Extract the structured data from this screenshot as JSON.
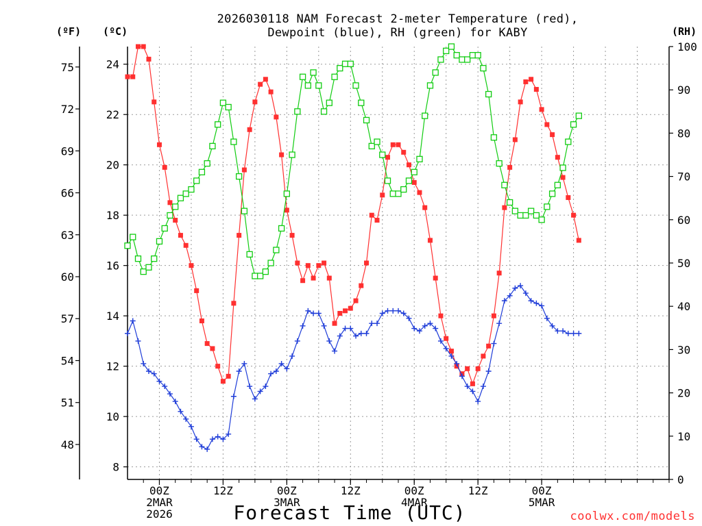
{
  "chart_data": {
    "type": "line",
    "title_line1": "2026030118 NAM Forecast 2-meter Temperature (red),",
    "title_line2": "Dewpoint (blue), RH (green) for KABY",
    "ylabel_f": "(ºF)",
    "ylabel_c": "(ºC)",
    "ylabel_rh": "(RH)",
    "xlabel": "Forecast Time (UTC)",
    "credit": "coolwx.com/models",
    "x_start_hour": 18,
    "x_end_hour": 120,
    "x_step_hours": 1,
    "ylim_c": [
      7.5,
      24.7
    ],
    "ylim_rh": [
      0,
      100
    ],
    "yticks_c": [
      8,
      10,
      12,
      14,
      16,
      18,
      20,
      22,
      24
    ],
    "yticks_f": [
      48,
      51,
      54,
      57,
      60,
      63,
      66,
      69,
      72,
      75
    ],
    "yticks_rh": [
      0,
      10,
      20,
      30,
      40,
      50,
      60,
      70,
      80,
      90,
      100
    ],
    "x_ticks": [
      {
        "hour": 24,
        "lines": [
          "00Z",
          "2MAR",
          "2026"
        ]
      },
      {
        "hour": 36,
        "lines": [
          "12Z"
        ]
      },
      {
        "hour": 48,
        "lines": [
          "00Z",
          "3MAR"
        ]
      },
      {
        "hour": 60,
        "lines": [
          "12Z"
        ]
      },
      {
        "hour": 72,
        "lines": [
          "00Z",
          "4MAR"
        ]
      },
      {
        "hour": 84,
        "lines": [
          "12Z"
        ]
      },
      {
        "hour": 96,
        "lines": [
          "00Z",
          "5MAR"
        ]
      }
    ],
    "series": [
      {
        "name": "2-meter Temperature",
        "unit": "C",
        "color": "#ff3030",
        "marker": "filled-square",
        "values": [
          23.5,
          23.5,
          24.7,
          24.7,
          24.2,
          22.5,
          20.8,
          19.9,
          18.5,
          17.8,
          17.2,
          16.8,
          16.0,
          15.0,
          13.8,
          12.9,
          12.7,
          12.0,
          11.4,
          11.6,
          14.5,
          17.2,
          19.8,
          21.4,
          22.5,
          23.2,
          23.4,
          22.9,
          21.9,
          20.4,
          18.2,
          17.2,
          16.1,
          15.4,
          16.0,
          15.5,
          16.0,
          16.1,
          15.5,
          13.7,
          14.1,
          14.2,
          14.3,
          14.6,
          15.2,
          16.1,
          18.0,
          17.8,
          18.8,
          20.3,
          20.8,
          20.8,
          20.5,
          20.0,
          19.3,
          18.9,
          18.3,
          17.0,
          15.5,
          14.0,
          13.1,
          12.6,
          12.0,
          11.7,
          11.9,
          11.3,
          11.9,
          12.4,
          12.8,
          14.0,
          15.7,
          18.3,
          19.9,
          21.0,
          22.5,
          23.3,
          23.4,
          23.0,
          22.2,
          21.6,
          21.2,
          20.3,
          19.5,
          18.7,
          18.0,
          17.0
        ]
      },
      {
        "name": "Dewpoint",
        "unit": "C",
        "color": "#1e3cd8",
        "marker": "plus",
        "values": [
          13.3,
          13.8,
          13.0,
          12.1,
          11.8,
          11.7,
          11.4,
          11.2,
          10.9,
          10.6,
          10.2,
          9.9,
          9.6,
          9.1,
          8.8,
          8.7,
          9.1,
          9.2,
          9.1,
          9.3,
          10.8,
          11.8,
          12.1,
          11.2,
          10.7,
          11.0,
          11.2,
          11.7,
          11.8,
          12.1,
          11.9,
          12.4,
          13.0,
          13.6,
          14.2,
          14.1,
          14.1,
          13.6,
          13.0,
          12.6,
          13.2,
          13.5,
          13.5,
          13.2,
          13.3,
          13.3,
          13.7,
          13.7,
          14.1,
          14.2,
          14.2,
          14.2,
          14.1,
          13.9,
          13.5,
          13.4,
          13.6,
          13.7,
          13.5,
          13.0,
          12.7,
          12.4,
          12.1,
          11.6,
          11.2,
          11.0,
          10.6,
          11.2,
          11.8,
          12.9,
          13.7,
          14.6,
          14.8,
          15.1,
          15.2,
          14.9,
          14.6,
          14.5,
          14.4,
          13.9,
          13.6,
          13.4,
          13.4,
          13.3,
          13.3,
          13.3
        ]
      },
      {
        "name": "RH",
        "unit": "%",
        "color": "#10cc10",
        "marker": "open-square",
        "values": [
          54,
          56,
          51,
          48,
          49,
          51,
          55,
          58,
          61,
          63,
          65,
          66,
          67,
          69,
          71,
          73,
          77,
          82,
          87,
          86,
          78,
          70,
          62,
          52,
          47,
          47,
          48,
          50,
          53,
          58,
          66,
          75,
          85,
          93,
          91,
          94,
          91,
          85,
          87,
          93,
          95,
          96,
          96,
          91,
          87,
          83,
          77,
          78,
          75,
          69,
          66,
          66,
          67,
          69,
          71,
          74,
          84,
          91,
          94,
          97,
          99,
          100,
          98,
          97,
          97,
          98,
          98,
          95,
          89,
          79,
          73,
          68,
          64,
          62,
          61,
          61,
          62,
          61,
          60,
          63,
          66,
          68,
          72,
          78,
          82,
          84
        ]
      }
    ]
  }
}
